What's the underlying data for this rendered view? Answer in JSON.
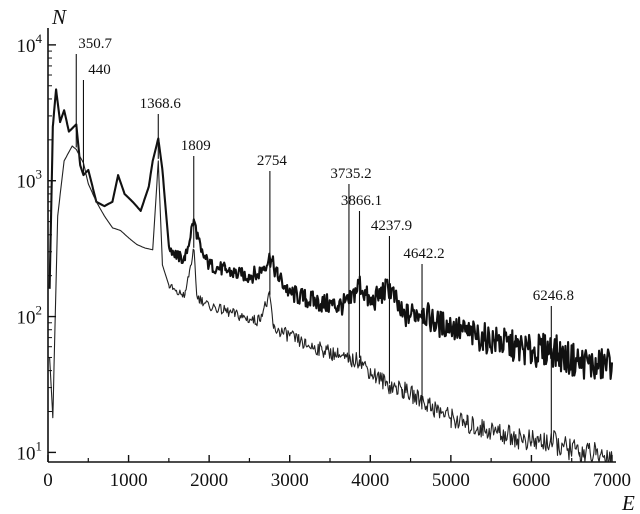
{
  "chart_data": {
    "type": "line",
    "title": "",
    "xlabel": "E",
    "ylabel": "N",
    "x_scale": "linear",
    "y_scale": "log",
    "xlim": [
      0,
      7000
    ],
    "ylim": [
      8.5,
      10500
    ],
    "grid": false,
    "legend": "none",
    "x_ticks": [
      {
        "value": 0,
        "label": "0"
      },
      {
        "value": 1000,
        "label": "1000"
      },
      {
        "value": 2000,
        "label": "2000"
      },
      {
        "value": 3000,
        "label": "3000"
      },
      {
        "value": 4000,
        "label": "4000"
      },
      {
        "value": 5000,
        "label": "5000"
      },
      {
        "value": 6000,
        "label": "6000"
      },
      {
        "value": 7000,
        "label": "7000"
      }
    ],
    "y_ticks": [
      {
        "value": 10,
        "base": "10",
        "exponent": "1"
      },
      {
        "value": 100,
        "base": "10",
        "exponent": "2"
      },
      {
        "value": 1000,
        "base": "10",
        "exponent": "3"
      },
      {
        "value": 10000,
        "base": "10",
        "exponent": "4"
      }
    ],
    "series": [
      {
        "style": "thick",
        "color": "#111111",
        "points": [
          [
            20,
            160
          ],
          [
            60,
            2500
          ],
          [
            100,
            4700
          ],
          [
            150,
            2700
          ],
          [
            200,
            3300
          ],
          [
            260,
            2300
          ],
          [
            350.7,
            2600
          ],
          [
            400,
            1300
          ],
          [
            440,
            1100
          ],
          [
            500,
            1200
          ],
          [
            600,
            700
          ],
          [
            700,
            650
          ],
          [
            800,
            700
          ],
          [
            870,
            1100
          ],
          [
            950,
            800
          ],
          [
            1050,
            700
          ],
          [
            1150,
            600
          ],
          [
            1250,
            900
          ],
          [
            1300,
            1400
          ],
          [
            1368.6,
            2050
          ],
          [
            1420,
            1200
          ],
          [
            1500,
            330
          ],
          [
            1600,
            280
          ],
          [
            1700,
            260
          ],
          [
            1809,
            520
          ],
          [
            1900,
            300
          ],
          [
            2000,
            240
          ],
          [
            2200,
            220
          ],
          [
            2400,
            200
          ],
          [
            2600,
            205
          ],
          [
            2754,
            270
          ],
          [
            2850,
            200
          ],
          [
            3000,
            150
          ],
          [
            3200,
            135
          ],
          [
            3400,
            125
          ],
          [
            3600,
            120
          ],
          [
            3735.2,
            125
          ],
          [
            3866.1,
            175
          ],
          [
            4000,
            125
          ],
          [
            4237.9,
            165
          ],
          [
            4400,
            100
          ],
          [
            4642.2,
            110
          ],
          [
            4800,
            90
          ],
          [
            5000,
            85
          ],
          [
            5200,
            75
          ],
          [
            5400,
            70
          ],
          [
            5600,
            65
          ],
          [
            5800,
            60
          ],
          [
            6000,
            55
          ],
          [
            6246.8,
            58
          ],
          [
            6400,
            50
          ],
          [
            6600,
            47
          ],
          [
            6800,
            43
          ],
          [
            7000,
            46
          ]
        ]
      },
      {
        "style": "thin",
        "color": "#222222",
        "points": [
          [
            20,
            50
          ],
          [
            60,
            18
          ],
          [
            120,
            550
          ],
          [
            200,
            1400
          ],
          [
            300,
            1800
          ],
          [
            350.7,
            1700
          ],
          [
            440,
            1350
          ],
          [
            500,
            950
          ],
          [
            600,
            700
          ],
          [
            700,
            550
          ],
          [
            800,
            450
          ],
          [
            900,
            430
          ],
          [
            1000,
            380
          ],
          [
            1100,
            340
          ],
          [
            1200,
            320
          ],
          [
            1300,
            310
          ],
          [
            1368.6,
            1400
          ],
          [
            1420,
            240
          ],
          [
            1500,
            170
          ],
          [
            1600,
            150
          ],
          [
            1700,
            145
          ],
          [
            1809,
            310
          ],
          [
            1850,
            140
          ],
          [
            2000,
            120
          ],
          [
            2200,
            110
          ],
          [
            2400,
            100
          ],
          [
            2600,
            92
          ],
          [
            2754,
            140
          ],
          [
            2800,
            82
          ],
          [
            3000,
            72
          ],
          [
            3200,
            62
          ],
          [
            3400,
            57
          ],
          [
            3600,
            52
          ],
          [
            3735.2,
            47
          ],
          [
            3866.1,
            48
          ],
          [
            4000,
            39
          ],
          [
            4237.9,
            31
          ],
          [
            4400,
            29
          ],
          [
            4642.2,
            24
          ],
          [
            4800,
            21
          ],
          [
            5000,
            18
          ],
          [
            5200,
            16
          ],
          [
            5400,
            15
          ],
          [
            5600,
            14
          ],
          [
            5800,
            13
          ],
          [
            6000,
            12
          ],
          [
            6246.8,
            12
          ],
          [
            6400,
            11
          ],
          [
            6600,
            10
          ],
          [
            6800,
            9.6
          ],
          [
            7000,
            9.2
          ]
        ]
      }
    ],
    "annotations": [
      {
        "label": "350.7",
        "x": 350.7
      },
      {
        "label": "440",
        "x": 440
      },
      {
        "label": "1368.6",
        "x": 1368.6
      },
      {
        "label": "1809",
        "x": 1809
      },
      {
        "label": "2754",
        "x": 2754
      },
      {
        "label": "3735.2",
        "x": 3735.2
      },
      {
        "label": "3866.1",
        "x": 3866.1
      },
      {
        "label": "4237.9",
        "x": 4237.9
      },
      {
        "label": "4642.2",
        "x": 4642.2
      },
      {
        "label": "6246.8",
        "x": 6246.8
      }
    ]
  }
}
